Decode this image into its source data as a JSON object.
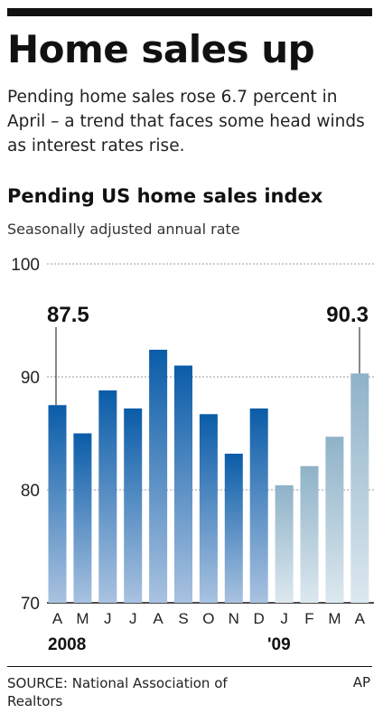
{
  "headline": "Home sales up",
  "dek": "Pending home sales rose 6.7 percent in April – a trend that faces some head winds as interest rates rise.",
  "chart_data": {
    "type": "bar",
    "title": "Pending US home sales index",
    "subtitle": "Seasonally adjusted annual rate",
    "categories": [
      "A",
      "M",
      "J",
      "J",
      "A",
      "S",
      "O",
      "N",
      "D",
      "J",
      "F",
      "M",
      "A"
    ],
    "year_labels": [
      "2008",
      "'09"
    ],
    "values": [
      87.5,
      85.0,
      88.8,
      87.2,
      92.4,
      91.0,
      86.7,
      83.2,
      87.2,
      80.4,
      82.1,
      84.7,
      90.3
    ],
    "ylim": [
      70,
      100
    ],
    "yticks": [
      70,
      80,
      90,
      100
    ],
    "grid": true,
    "series_colors": {
      "2008": "#1a66b0",
      "2009": "#a4c2d6"
    },
    "annotations": [
      {
        "index": 0,
        "label": "87.5"
      },
      {
        "index": 12,
        "label": "90.3"
      }
    ]
  },
  "source": "SOURCE: National Association of Realtors",
  "credit": "AP"
}
